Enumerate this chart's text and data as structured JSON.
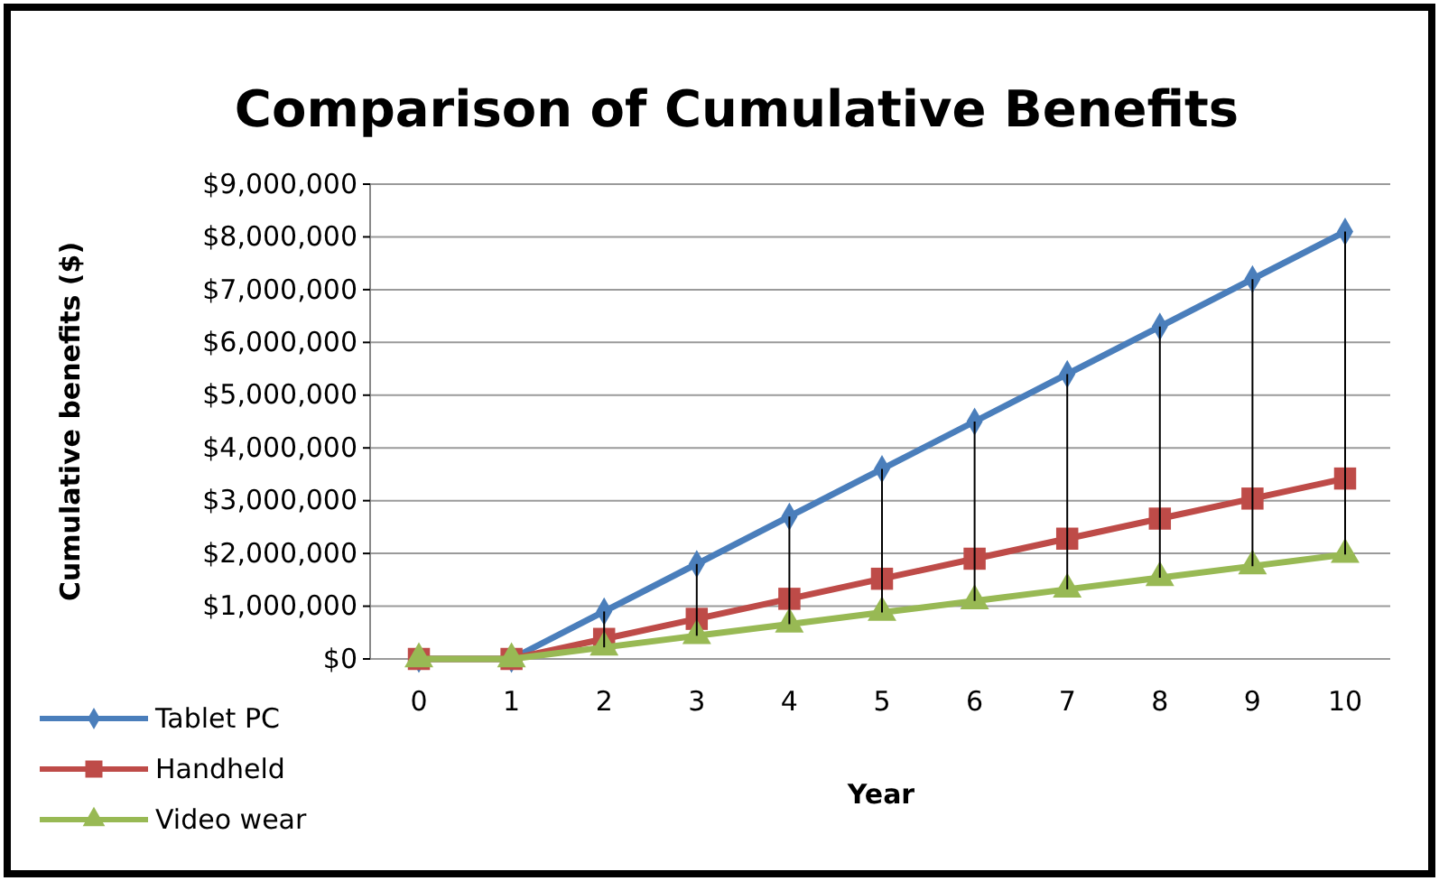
{
  "chart_data": {
    "type": "line",
    "title": "Comparison of Cumulative Benefits",
    "xlabel": "Year",
    "ylabel": "Cumulative benefits ($)",
    "categories": [
      "0",
      "1",
      "2",
      "3",
      "4",
      "5",
      "6",
      "7",
      "8",
      "9",
      "10"
    ],
    "series": [
      {
        "name": "Tablet PC",
        "color": "#4a7ebb",
        "marker": "diamond",
        "values": [
          0,
          0,
          900000,
          1800000,
          2700000,
          3600000,
          4500000,
          5400000,
          6300000,
          7200000,
          8100000
        ]
      },
      {
        "name": "Handheld",
        "color": "#be4b48",
        "marker": "square",
        "values": [
          0,
          0,
          380000,
          760000,
          1140000,
          1520000,
          1900000,
          2280000,
          2660000,
          3040000,
          3420000
        ]
      },
      {
        "name": "Video wear",
        "color": "#98b954",
        "marker": "triangle",
        "values": [
          0,
          0,
          220000,
          440000,
          660000,
          880000,
          1100000,
          1320000,
          1540000,
          1760000,
          1980000
        ],
        "errors": [
          null,
          null,
          [
            220000,
            900000
          ],
          [
            440000,
            1800000
          ],
          [
            660000,
            2700000
          ],
          [
            880000,
            3600000
          ],
          [
            1100000,
            4500000
          ],
          [
            1320000,
            5400000
          ],
          [
            1540000,
            6300000
          ],
          [
            1760000,
            7200000
          ],
          [
            1980000,
            8100000
          ]
        ]
      }
    ],
    "ylim": [
      0,
      9000000
    ],
    "yticks": [
      {
        "value": 0,
        "label": "$0"
      },
      {
        "value": 1000000,
        "label": "$1,000,000"
      },
      {
        "value": 2000000,
        "label": "$2,000,000"
      },
      {
        "value": 3000000,
        "label": "$3,000,000"
      },
      {
        "value": 4000000,
        "label": "$4,000,000"
      },
      {
        "value": 5000000,
        "label": "$5,000,000"
      },
      {
        "value": 6000000,
        "label": "$6,000,000"
      },
      {
        "value": 7000000,
        "label": "$7,000,000"
      },
      {
        "value": 8000000,
        "label": "$8,000,000"
      },
      {
        "value": 9000000,
        "label": "$9,000,000"
      }
    ],
    "grid": "y",
    "legend": "bottom left"
  }
}
